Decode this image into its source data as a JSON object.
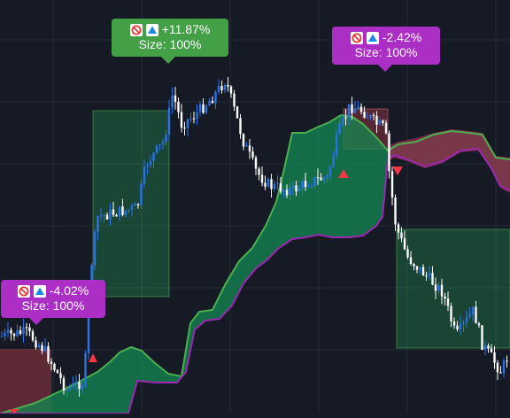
{
  "colors": {
    "background": "#161a25",
    "grid": "#262b38",
    "candle_up": "#2a72e6",
    "candle_down": "#ffffff",
    "cloud_bull": "#138a52",
    "cloud_bear": "#8b2f4a",
    "band_upper": "#4caf50",
    "band_lower": "#9c27b0",
    "trade_win": "#43a047",
    "trade_loss": "#ab2fc4",
    "marker": "#f23645"
  },
  "trades": [
    {
      "pnl": "-4.02%",
      "size": "Size: 100%",
      "result": "loss",
      "icons": [
        "ban-icon",
        "arrow-up-box-icon"
      ]
    },
    {
      "pnl": "+11.87%",
      "size": "Size: 100%",
      "result": "win",
      "icons": [
        "ban-icon",
        "arrow-up-box-icon"
      ]
    },
    {
      "pnl": "-2.42%",
      "size": "Size: 100%",
      "result": "loss",
      "icons": [
        "ban-icon",
        "arrow-up-box-icon"
      ]
    }
  ]
}
